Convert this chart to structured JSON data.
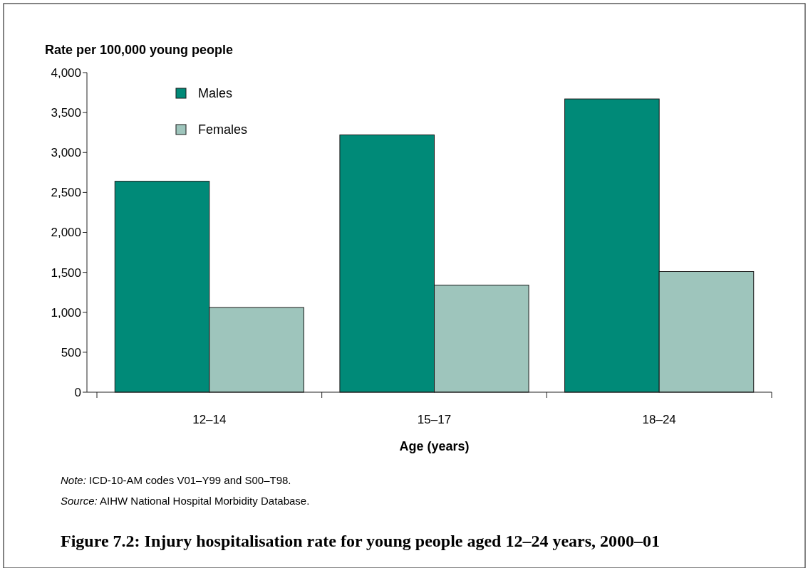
{
  "chart_data": {
    "type": "bar",
    "title": "Figure 7.2: Injury hospitalisation rate for young people aged 12–24 years, 2000–01",
    "ylabel": "Rate per 100,000 young people",
    "xlabel": "Age (years)",
    "categories": [
      "12–14",
      "15–17",
      "18–24"
    ],
    "series": [
      {
        "name": "Males",
        "color": "#008a78",
        "values": [
          2640,
          3220,
          3670
        ]
      },
      {
        "name": "Females",
        "color": "#9ec5bc",
        "values": [
          1060,
          1340,
          1510
        ]
      }
    ],
    "ylim": [
      0,
      4000
    ],
    "yticks": [
      {
        "value": 0,
        "label": "0"
      },
      {
        "value": 500,
        "label": "500"
      },
      {
        "value": 1000,
        "label": "1,000"
      },
      {
        "value": 1500,
        "label": "1,500"
      },
      {
        "value": 2000,
        "label": "2,000"
      },
      {
        "value": 2500,
        "label": "2,500"
      },
      {
        "value": 3000,
        "label": "3,000"
      },
      {
        "value": 3500,
        "label": "3,500"
      },
      {
        "value": 4000,
        "label": "4,000"
      }
    ],
    "legend": "top left",
    "grid": false,
    "annotations": [
      "Note: ICD-10-AM codes V01–Y99 and S00–T98.",
      "Source: AIHW National Hospital Morbidity Database."
    ]
  }
}
